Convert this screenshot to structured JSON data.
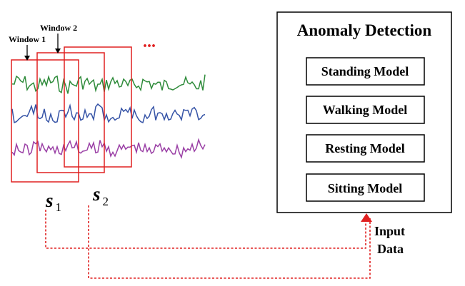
{
  "windows": [
    {
      "label": "Window 1"
    },
    {
      "label": "Window 2"
    }
  ],
  "ellipsis": "...",
  "segments": [
    {
      "letter": "s",
      "sub": "1"
    },
    {
      "letter": "s",
      "sub": "2"
    }
  ],
  "panel": {
    "title": "Anomaly Detection",
    "models": [
      "Standing Model",
      "Walking Model",
      "Resting Model",
      "Sitting Model"
    ]
  },
  "input": {
    "line1": "Input",
    "line2": "Data"
  },
  "colors": {
    "window": "#e02020",
    "signal_green": "#2e8b3a",
    "signal_blue": "#3553a6",
    "signal_purple": "#9a3fa5",
    "dotted_arrow": "#e02020"
  }
}
